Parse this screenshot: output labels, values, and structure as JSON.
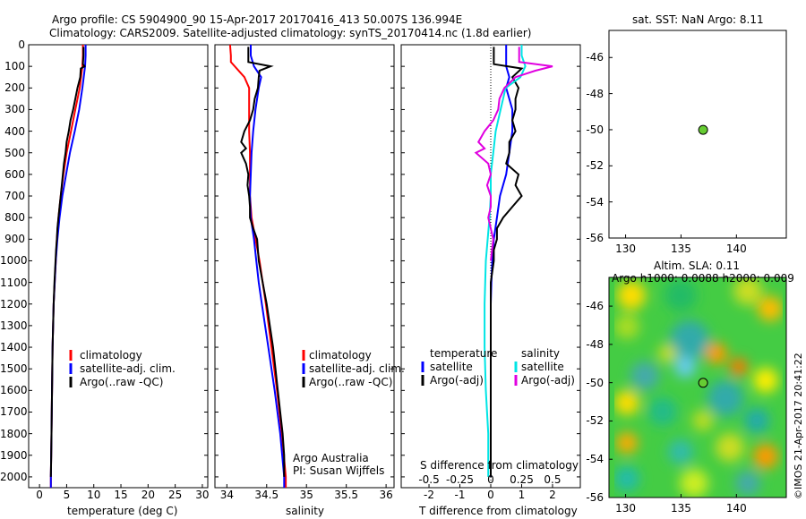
{
  "title": {
    "line1": "Argo profile: CS 5904900_90 15-Apr-2017 20170416_413 50.007S 136.994E",
    "line2": "Climatology: CARS2009. Satellite-adjusted climatology: synTS_20170414.nc (1.8d earlier)"
  },
  "colors": {
    "climatology": "#ff0000",
    "satellite": "#0000ff",
    "argo": "#000000",
    "satellite_s": "#00e5e5",
    "argo_s": "#e000e0",
    "marker": "#66cc33"
  },
  "depth_axis": {
    "ylim": [
      0,
      2050
    ],
    "ticks": [
      0,
      100,
      200,
      300,
      400,
      500,
      600,
      700,
      800,
      900,
      1000,
      1100,
      1200,
      1300,
      1400,
      1500,
      1600,
      1700,
      1800,
      1900,
      2000
    ]
  },
  "temperature_panel": {
    "xlabel": "temperature (deg C)",
    "xlim": [
      -2,
      31
    ],
    "xticks": [
      0,
      5,
      10,
      15,
      20,
      25,
      30
    ],
    "legend": [
      "climatology",
      "satellite-adj. clim.",
      "Argo(..raw -QC)"
    ]
  },
  "salinity_panel": {
    "xlabel": "salinity",
    "xlim": [
      33.85,
      36.1
    ],
    "xticks": [
      34,
      34.5,
      35,
      35.5,
      36
    ],
    "legend": [
      "climatology",
      "satellite-adj. clim.",
      "Argo(..raw -QC)"
    ],
    "credit1": "Argo Australia",
    "credit2": "PI: Susan Wijffels"
  },
  "difference_panel": {
    "xlabel": "T difference from climatology",
    "xlabel_top": "S difference from climatology",
    "xlim": [
      -2.9,
      2.9
    ],
    "xticks": [
      "-2",
      "-1",
      "0",
      "1",
      "2"
    ],
    "xticks_s": [
      "-0.5",
      "-0.25",
      "0",
      "0.25",
      "0.5"
    ],
    "legend_t_title": "temperature",
    "legend_s_title": "salinity",
    "legend_t": [
      "satellite",
      "Argo(-adj)"
    ],
    "legend_s": [
      "satellite",
      "Argo(-adj)"
    ]
  },
  "sst_map": {
    "title": "sat. SST: NaN Argo: 8.11",
    "xlim": [
      128.5,
      144.5
    ],
    "ylim": [
      -56,
      -44.5
    ],
    "xticks": [
      130,
      135,
      140
    ],
    "yticks": [
      -46,
      -48,
      -50,
      -52,
      -54,
      -56
    ],
    "point": {
      "lon": 136.994,
      "lat": -50.007
    }
  },
  "sla_map": {
    "title1": "Altim. SLA: 0.11",
    "title2": "Argo h1000: 0.0088 h2000: 0.009",
    "xlim": [
      128.5,
      144.5
    ],
    "ylim": [
      -56,
      -44.5
    ],
    "xticks": [
      130,
      135,
      140
    ],
    "yticks": [
      -46,
      -48,
      -50,
      -52,
      -54,
      -56
    ],
    "point": {
      "lon": 136.994,
      "lat": -50.007
    }
  },
  "watermark": "©IMOS 21-Apr-2017 20:41:22",
  "chart_data": [
    {
      "type": "line",
      "xlabel": "temperature (deg C)",
      "ylabel": "",
      "xlim": [
        -2,
        31
      ],
      "ylim": [
        2050,
        0
      ],
      "series": [
        {
          "name": "climatology",
          "depth": [
            0,
            50,
            100,
            200,
            300,
            400,
            500,
            600,
            700,
            800,
            900,
            1000,
            1100,
            1200,
            1400,
            1600,
            1800,
            2000,
            2050
          ],
          "values": [
            8.0,
            8.0,
            7.9,
            7.4,
            6.6,
            5.8,
            5.0,
            4.4,
            3.9,
            3.5,
            3.2,
            3.0,
            2.8,
            2.6,
            2.4,
            2.3,
            2.2,
            2.1,
            2.1
          ]
        },
        {
          "name": "satellite-adj. clim.",
          "depth": [
            0,
            50,
            100,
            200,
            300,
            400,
            500,
            600,
            700,
            800,
            900,
            1000,
            1100,
            1200,
            1400,
            1600,
            1800,
            2000,
            2050
          ],
          "values": [
            8.5,
            8.5,
            8.4,
            7.9,
            7.3,
            6.5,
            5.6,
            4.9,
            4.2,
            3.7,
            3.3,
            3.0,
            2.8,
            2.6,
            2.4,
            2.3,
            2.2,
            2.1,
            2.1
          ]
        },
        {
          "name": "Argo(..raw -QC)",
          "depth": [
            10,
            50,
            90,
            100,
            110,
            150,
            200,
            250,
            300,
            350,
            400,
            450,
            500,
            550,
            600,
            650,
            700,
            750,
            800,
            850,
            900,
            950,
            1000,
            1050,
            1100,
            1200,
            1300,
            1400,
            1500,
            1600,
            1700,
            1800,
            1900,
            2000
          ],
          "values": [
            8.1,
            8.1,
            8.0,
            8.3,
            7.6,
            7.5,
            7.0,
            6.6,
            6.2,
            5.7,
            5.4,
            5.0,
            4.8,
            4.5,
            4.3,
            4.1,
            3.9,
            3.7,
            3.5,
            3.3,
            3.2,
            3.05,
            2.95,
            2.85,
            2.75,
            2.6,
            2.5,
            2.4,
            2.35,
            2.3,
            2.25,
            2.2,
            2.15,
            2.1
          ]
        }
      ]
    },
    {
      "type": "line",
      "xlabel": "salinity",
      "ylabel": "",
      "xlim": [
        33.85,
        36.1
      ],
      "ylim": [
        2050,
        0
      ],
      "series": [
        {
          "name": "climatology",
          "depth": [
            0,
            50,
            80,
            150,
            200,
            300,
            400,
            500,
            600,
            700,
            800,
            900,
            1000,
            1100,
            1200,
            1400,
            1600,
            1800,
            2000,
            2050
          ],
          "values": [
            34.04,
            34.05,
            34.05,
            34.22,
            34.28,
            34.28,
            34.28,
            34.29,
            34.29,
            34.29,
            34.31,
            34.36,
            34.41,
            34.45,
            34.49,
            34.56,
            34.63,
            34.69,
            34.74,
            34.74
          ]
        },
        {
          "name": "satellite-adj. clim.",
          "depth": [
            0,
            50,
            100,
            150,
            200,
            300,
            400,
            500,
            600,
            700,
            800,
            900,
            1000,
            1100,
            1200,
            1400,
            1600,
            1800,
            2000,
            2050
          ],
          "values": [
            34.3,
            34.3,
            34.34,
            34.43,
            34.4,
            34.36,
            34.33,
            34.31,
            34.3,
            34.29,
            34.3,
            34.34,
            34.37,
            34.4,
            34.44,
            34.52,
            34.6,
            34.67,
            34.72,
            34.72
          ]
        },
        {
          "name": "Argo(..raw -QC)",
          "depth": [
            10,
            50,
            80,
            100,
            120,
            150,
            200,
            250,
            300,
            350,
            400,
            450,
            480,
            500,
            550,
            600,
            650,
            700,
            750,
            800,
            850,
            900,
            950,
            1000,
            1100,
            1200,
            1300,
            1400,
            1500,
            1600,
            1700,
            1800,
            1900,
            2000
          ],
          "values": [
            34.27,
            34.27,
            34.27,
            34.55,
            34.41,
            34.4,
            34.39,
            34.35,
            34.33,
            34.29,
            34.22,
            34.18,
            34.24,
            34.18,
            34.24,
            34.27,
            34.26,
            34.28,
            34.29,
            34.29,
            34.33,
            34.38,
            34.39,
            34.4,
            34.45,
            34.5,
            34.54,
            34.58,
            34.61,
            34.64,
            34.67,
            34.7,
            34.72,
            34.72
          ]
        }
      ]
    },
    {
      "type": "line",
      "xlabel": "T difference from climatology",
      "ylabel": "",
      "xlim": [
        -2.9,
        2.9
      ],
      "ylim": [
        2050,
        0
      ],
      "series": [
        {
          "name": "temperature satellite",
          "depth": [
            0,
            50,
            100,
            150,
            200,
            300,
            400,
            500,
            600,
            700,
            800,
            900,
            1000,
            1100,
            1200,
            1400,
            1600,
            1800,
            2000
          ],
          "values": [
            0.5,
            0.5,
            0.5,
            0.6,
            0.5,
            0.7,
            0.7,
            0.6,
            0.5,
            0.3,
            0.2,
            0.1,
            0.05,
            0.02,
            0.0,
            0.0,
            0.0,
            0.0,
            0.0
          ]
        },
        {
          "name": "temperature Argo(-adj)",
          "depth": [
            10,
            50,
            90,
            110,
            150,
            200,
            250,
            300,
            350,
            400,
            450,
            500,
            550,
            600,
            650,
            700,
            750,
            800,
            850,
            900,
            950,
            1000,
            1100,
            1200,
            1300,
            1400,
            1500,
            1600,
            1700,
            1800,
            1900,
            2000
          ],
          "values": [
            0.1,
            0.1,
            0.1,
            1.0,
            0.7,
            0.9,
            0.8,
            0.8,
            0.7,
            0.8,
            0.6,
            0.6,
            0.5,
            0.9,
            0.8,
            1.0,
            0.7,
            0.4,
            0.2,
            0.2,
            0.1,
            0.1,
            0.0,
            0.0,
            0.0,
            0.0,
            0.0,
            0.0,
            0.0,
            0.0,
            0.0,
            0.0
          ]
        },
        {
          "name": "salinity satellite",
          "depth": [
            0,
            50,
            100,
            150,
            200,
            300,
            400,
            500,
            600,
            700,
            800,
            1000,
            1200,
            1400,
            1600,
            1800,
            2000
          ],
          "values": [
            0.25,
            0.25,
            0.28,
            0.24,
            0.12,
            0.08,
            0.04,
            0.02,
            0.0,
            0.0,
            -0.01,
            -0.04,
            -0.05,
            -0.05,
            -0.04,
            -0.02,
            -0.02
          ]
        },
        {
          "name": "salinity Argo(-adj)",
          "depth": [
            10,
            50,
            80,
            100,
            120,
            150,
            200,
            250,
            300,
            350,
            400,
            450,
            480,
            500,
            550,
            600,
            650,
            700,
            750,
            800,
            900,
            1000
          ],
          "values": [
            0.23,
            0.23,
            0.23,
            0.5,
            0.36,
            0.2,
            0.11,
            0.07,
            0.06,
            0.02,
            -0.05,
            -0.1,
            -0.05,
            -0.12,
            -0.02,
            0.0,
            -0.03,
            0.0,
            0.0,
            -0.02,
            0.02,
            0.0
          ]
        }
      ]
    },
    {
      "type": "scatter",
      "title": "sat. SST: NaN Argo: 8.11",
      "xlabel": "",
      "ylabel": "",
      "xlim": [
        128.5,
        144.5
      ],
      "ylim": [
        -56,
        -44.5
      ],
      "series": [
        {
          "name": "",
          "x": [
            136.994
          ],
          "y": [
            -50.007
          ]
        }
      ]
    },
    {
      "type": "heatmap",
      "title": "Altim. SLA: 0.11",
      "xlabel": "",
      "ylabel": "",
      "xlim": [
        128.5,
        144.5
      ],
      "ylim": [
        -56,
        -44.5
      ],
      "series": [
        {
          "name": "",
          "x": [
            136.994
          ],
          "y": [
            -50.007
          ]
        }
      ]
    }
  ]
}
